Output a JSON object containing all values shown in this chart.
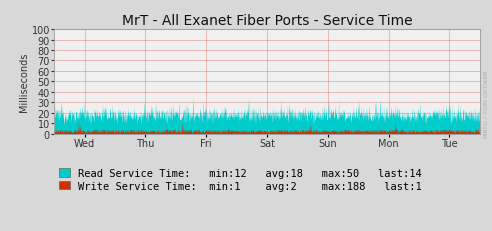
{
  "title": "MrT - All Exanet Fiber Ports - Service Time",
  "ylabel": "Milliseconds",
  "yticks": [
    0,
    10,
    20,
    30,
    40,
    50,
    60,
    70,
    80,
    90,
    100
  ],
  "ylim": [
    0,
    100
  ],
  "x_tick_labels": [
    "Wed",
    "Thu",
    "Fri",
    "Sat",
    "Sun",
    "Mon",
    "Tue"
  ],
  "bg_color": "#d8d8d8",
  "plot_bg_color": "#f0f0f0",
  "grid_color": "#e08080",
  "read_color": "#00cccc",
  "write_color": "#cc3300",
  "read_label": "Read Service Time:   min:12   avg:18   max:50   last:14",
  "write_label": "Write Service Time:  min:1    avg:2    max:188   last:1",
  "watermark": "MRTG / TOBI OETIKER",
  "num_points": 1400,
  "read_base_mean": 18,
  "read_base_std": 4,
  "write_base_mean": 2.5,
  "write_base_std": 1.2,
  "title_fontsize": 10,
  "axis_fontsize": 7,
  "legend_fontsize": 7.5
}
